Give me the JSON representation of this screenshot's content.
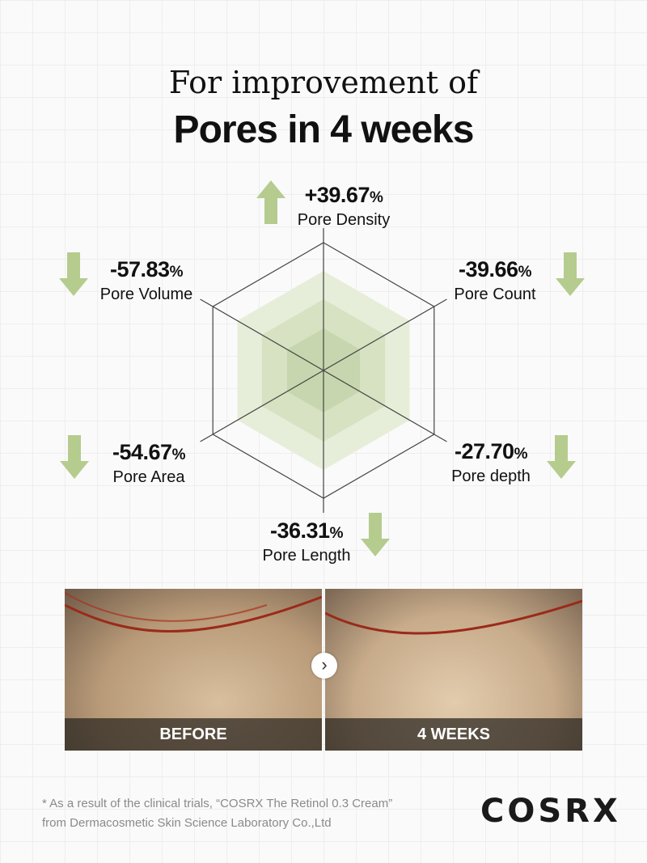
{
  "header": {
    "line1": "For improvement of",
    "line2": "Pores in 4 weeks"
  },
  "accent_color": "#b5cc8e",
  "metrics": [
    {
      "value": "+39.67",
      "unit": "%",
      "label": "Pore Density",
      "direction": "up"
    },
    {
      "value": "-39.66",
      "unit": "%",
      "label": "Pore Count",
      "direction": "down"
    },
    {
      "value": "-27.70",
      "unit": "%",
      "label": "Pore depth",
      "direction": "down"
    },
    {
      "value": "-36.31",
      "unit": "%",
      "label": "Pore Length",
      "direction": "down"
    },
    {
      "value": "-54.67",
      "unit": "%",
      "label": "Pore Area",
      "direction": "down"
    },
    {
      "value": "-57.83",
      "unit": "%",
      "label": "Pore Volume",
      "direction": "down"
    }
  ],
  "comparison": {
    "before_label": "BEFORE",
    "after_label": "4 WEEKS",
    "next_icon": "chevron-right-icon"
  },
  "footnote": {
    "line1": "* As a result of the clinical trials, “COSRX The Retinol 0.3 Cream”",
    "line2": "from Dermacosmetic Skin Science Laboratory Co.,Ltd"
  },
  "brand": "COSRX"
}
